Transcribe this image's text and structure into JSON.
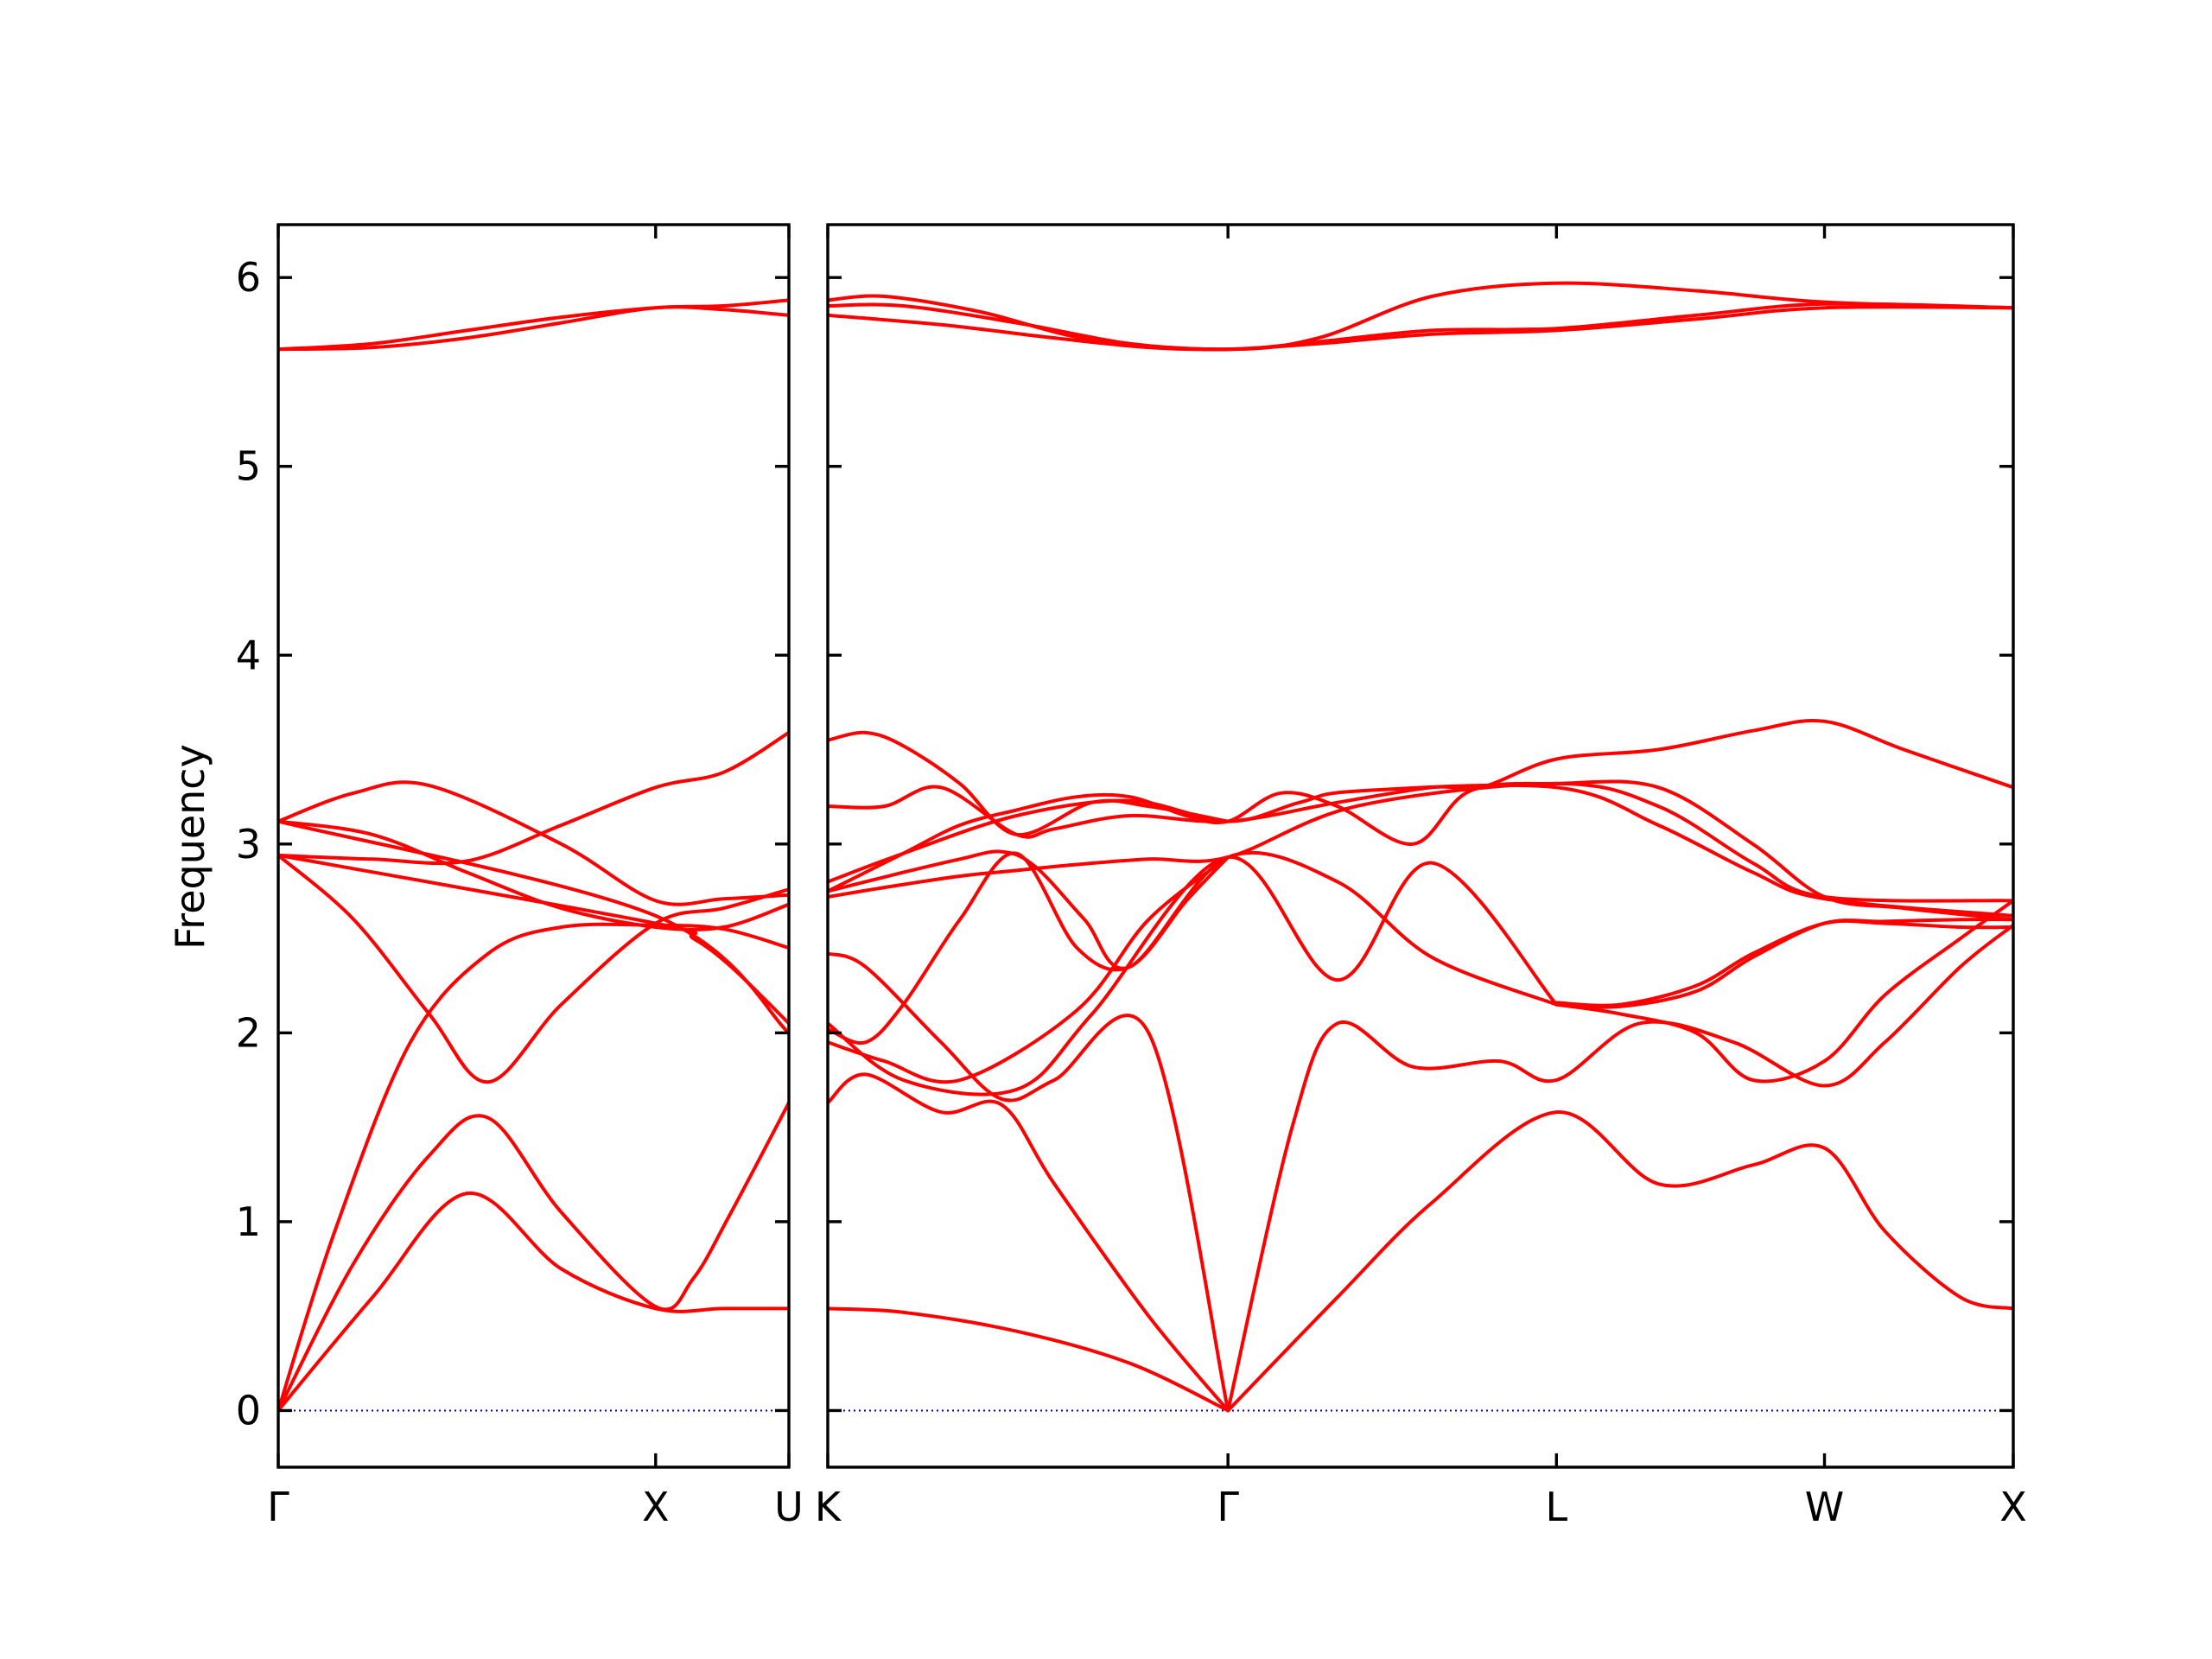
{
  "chart_data": {
    "type": "line",
    "ylabel": "Frequency",
    "ylim": [
      -0.3,
      6.28
    ],
    "yticks": [
      0,
      1,
      2,
      3,
      4,
      5,
      6
    ],
    "line_color": "#ff0000",
    "zero_line_color": "#0000aa",
    "panels": [
      {
        "xlim": [
          0,
          1.353
        ],
        "x_ticks": [
          {
            "x": 0,
            "label": "Γ"
          },
          {
            "x": 1.0,
            "label": "X"
          },
          {
            "x": 1.353,
            "label": "U"
          }
        ],
        "series": [
          {
            "x": [
              0,
              0.25,
              0.5,
              0.75,
              1.0,
              1.18,
              1.353
            ],
            "y": [
              0.0,
              0.6,
              1.15,
              0.75,
              0.54,
              0.54,
              0.54
            ]
          },
          {
            "x": [
              0,
              0.2,
              0.4,
              0.556,
              0.75,
              1.0,
              1.1,
              1.2,
              1.353
            ],
            "y": [
              0.0,
              0.78,
              1.35,
              1.55,
              1.05,
              0.55,
              0.7,
              1.05,
              1.63
            ]
          },
          {
            "x": [
              0,
              0.15,
              0.35,
              0.556,
              0.75,
              1.0,
              1.18,
              1.353
            ],
            "y": [
              0.0,
              0.95,
              1.95,
              2.42,
              2.56,
              2.57,
              2.55,
              2.45
            ]
          },
          {
            "x": [
              0,
              0.2,
              0.4,
              0.556,
              0.75,
              1.0,
              1.18,
              1.353
            ],
            "y": [
              2.94,
              2.6,
              2.1,
              1.74,
              2.15,
              2.58,
              2.66,
              2.76
            ]
          },
          {
            "x": [
              0,
              0.25,
              0.5,
              0.75,
              1.0,
              1.18,
              1.353
            ],
            "y": [
              2.94,
              2.92,
              2.91,
              3.1,
              3.3,
              3.38,
              3.59
            ]
          },
          {
            "x": [
              0,
              0.25,
              0.5,
              0.75,
              1.0,
              1.18,
              1.353
            ],
            "y": [
              3.12,
              3.05,
              2.85,
              2.66,
              2.56,
              2.56,
              2.68
            ]
          },
          {
            "x": [
              0,
              0.2,
              0.4,
              0.75,
              1.0,
              1.18,
              1.353
            ],
            "y": [
              3.12,
              3.27,
              3.31,
              3.0,
              2.7,
              2.71,
              2.73
            ]
          },
          {
            "x": [
              0,
              1.0,
              1.1,
              1.2,
              1.353
            ],
            "y": [
              2.94,
              2.58,
              2.5,
              2.35,
              2.05
            ]
          },
          {
            "x": [
              0,
              1.0,
              1.353
            ],
            "y": [
              3.12,
              2.62,
              2.0
            ]
          },
          {
            "x": [
              0,
              0.25,
              0.5,
              0.75,
              1.0,
              1.18,
              1.353
            ],
            "y": [
              5.62,
              5.63,
              5.68,
              5.76,
              5.84,
              5.83,
              5.8
            ]
          },
          {
            "x": [
              0,
              0.25,
              0.5,
              0.75,
              1.0,
              1.18,
              1.353
            ],
            "y": [
              5.62,
              5.65,
              5.72,
              5.79,
              5.84,
              5.85,
              5.88
            ]
          }
        ]
      },
      {
        "xlim": [
          0,
          3.14
        ],
        "x_ticks": [
          {
            "x": 0,
            "label": "K"
          },
          {
            "x": 1.06,
            "label": "Γ"
          },
          {
            "x": 1.93,
            "label": "L"
          },
          {
            "x": 2.64,
            "label": "W"
          },
          {
            "x": 3.14,
            "label": "X"
          }
        ],
        "series": [
          {
            "x": [
              0,
              0.2,
              0.5,
              0.8,
              1.06
            ],
            "y": [
              0.54,
              0.52,
              0.42,
              0.25,
              0.0
            ]
          },
          {
            "x": [
              0,
              0.1,
              0.3,
              0.46,
              0.6,
              0.85,
              1.06
            ],
            "y": [
              1.63,
              1.78,
              1.58,
              1.62,
              1.2,
              0.5,
              0.0
            ]
          },
          {
            "x": [
              0,
              0.1,
              0.3,
              0.46,
              0.6,
              0.85,
              1.06
            ],
            "y": [
              2.42,
              2.35,
              1.95,
              1.65,
              1.75,
              2.0,
              0.0
            ]
          },
          {
            "x": [
              1.06,
              1.35,
              1.6,
              1.93,
              2.2,
              2.45,
              2.64,
              2.8,
              3.0,
              3.14
            ],
            "y": [
              0.0,
              0.6,
              1.1,
              1.58,
              1.2,
              1.3,
              1.39,
              0.95,
              0.6,
              0.54
            ]
          },
          {
            "x": [
              1.06,
              1.23,
              1.35,
              1.55,
              1.78,
              1.93,
              2.15,
              2.4,
              2.64,
              2.8,
              3.0,
              3.14
            ],
            "y": [
              0.0,
              1.5,
              2.05,
              1.82,
              1.85,
              1.75,
              2.05,
              1.95,
              1.72,
              1.95,
              2.35,
              2.57
            ]
          },
          {
            "x": [
              0,
              0.2,
              0.5,
              0.7,
              1.06,
              1.35,
              1.6,
              1.93
            ],
            "y": [
              2.05,
              1.75,
              1.7,
              2.1,
              2.93,
              2.28,
              2.9,
              2.15
            ]
          },
          {
            "x": [
              0,
              0.2,
              0.35,
              0.46,
              0.55,
              0.68,
              0.8,
              1.06,
              1.35,
              1.6,
              1.93
            ],
            "y": [
              2.75,
              2.85,
              2.92,
              2.96,
              2.88,
              2.6,
              2.35,
              2.93,
              2.8,
              2.4,
              2.15
            ]
          },
          {
            "x": [
              0,
              0.1,
              0.2,
              0.35,
              0.5,
              0.66,
              0.8,
              0.95,
              1.06
            ],
            "y": [
              2.02,
              1.95,
              2.15,
              2.6,
              2.95,
              2.45,
              2.35,
              2.7,
              2.93
            ]
          },
          {
            "x": [
              0,
              0.15,
              0.35,
              0.66,
              0.85,
              1.06
            ],
            "y": [
              1.95,
              1.85,
              1.75,
              2.12,
              2.6,
              2.93
            ]
          },
          {
            "x": [
              0,
              0.15,
              0.35,
              0.5,
              0.65,
              0.85,
              1.06,
              1.4,
              1.93,
              2.2,
              2.45,
              2.64,
              3.14
            ],
            "y": [
              2.72,
              2.77,
              2.83,
              2.86,
              2.89,
              2.92,
              2.93,
              3.2,
              3.32,
              3.2,
              2.9,
              2.72,
              2.7
            ]
          },
          {
            "x": [
              0,
              0.2,
              0.5,
              0.8,
              1.06,
              1.25,
              1.4,
              1.93,
              2.2,
              2.45,
              2.64,
              3.14
            ],
            "y": [
              2.8,
              2.95,
              3.15,
              3.23,
              3.12,
              3.22,
              3.28,
              3.3,
              3.1,
              2.85,
              2.71,
              2.62
            ]
          },
          {
            "x": [
              0,
              0.2,
              0.35,
              0.5,
              0.66,
              0.8,
              0.95,
              1.06,
              1.2,
              1.35,
              1.55,
              1.7,
              1.93,
              2.2,
              2.45,
              2.64,
              2.85,
              3.14
            ],
            "y": [
              2.75,
              2.95,
              3.1,
              3.18,
              3.25,
              3.25,
              3.15,
              3.12,
              3.27,
              3.2,
              3.0,
              3.28,
              3.32,
              3.3,
              3.0,
              2.72,
              2.66,
              2.6
            ]
          },
          {
            "x": [
              0,
              0.15,
              0.3,
              0.5,
              0.6,
              0.8,
              1.06,
              1.35,
              1.6,
              1.73,
              1.93,
              2.2,
              2.45,
              2.64,
              2.85,
              3.14
            ],
            "y": [
              3.2,
              3.2,
              3.3,
              3.05,
              3.08,
              3.15,
              3.12,
              3.22,
              3.3,
              3.3,
              3.45,
              3.5,
              3.6,
              3.65,
              3.5,
              3.3
            ]
          },
          {
            "x": [
              0,
              0.1,
              0.2,
              0.35,
              0.5,
              0.7,
              0.85,
              1.06
            ],
            "y": [
              3.55,
              3.59,
              3.52,
              3.32,
              3.05,
              3.22,
              3.2,
              3.12
            ]
          },
          {
            "x": [
              1.93,
              2.1,
              2.3,
              2.45,
              2.64,
              2.8,
              3.0,
              3.14
            ],
            "y": [
              2.16,
              2.15,
              2.25,
              2.42,
              2.58,
              2.58,
              2.56,
              2.56
            ]
          },
          {
            "x": [
              1.93,
              2.1,
              2.3,
              2.45,
              2.64,
              2.8,
              3.0,
              3.14
            ],
            "y": [
              2.15,
              2.14,
              2.22,
              2.4,
              2.58,
              2.59,
              2.6,
              2.6
            ]
          },
          {
            "x": [
              1.93,
              2.1,
              2.3,
              2.45,
              2.64,
              2.8,
              3.0,
              3.14
            ],
            "y": [
              2.15,
              2.1,
              2.0,
              1.75,
              1.85,
              2.2,
              2.5,
              2.7
            ]
          },
          {
            "x": [
              0,
              0.3,
              0.6,
              0.85,
              1.06,
              1.3,
              1.6,
              1.93,
              2.3,
              2.64,
              3.14
            ],
            "y": [
              5.8,
              5.75,
              5.68,
              5.63,
              5.62,
              5.65,
              5.7,
              5.72,
              5.78,
              5.84,
              5.84
            ]
          },
          {
            "x": [
              0,
              0.2,
              0.5,
              0.8,
              1.06,
              1.3,
              1.6,
              1.93,
              2.3,
              2.64,
              3.14
            ],
            "y": [
              5.85,
              5.85,
              5.76,
              5.65,
              5.62,
              5.66,
              5.72,
              5.73,
              5.8,
              5.86,
              5.84
            ]
          },
          {
            "x": [
              0,
              0.15,
              0.4,
              0.7,
              1.06,
              1.3,
              1.6,
              1.93,
              2.3,
              2.64,
              3.14
            ],
            "y": [
              5.88,
              5.9,
              5.82,
              5.67,
              5.62,
              5.68,
              5.9,
              5.97,
              5.93,
              5.87,
              5.84
            ]
          }
        ]
      }
    ]
  }
}
